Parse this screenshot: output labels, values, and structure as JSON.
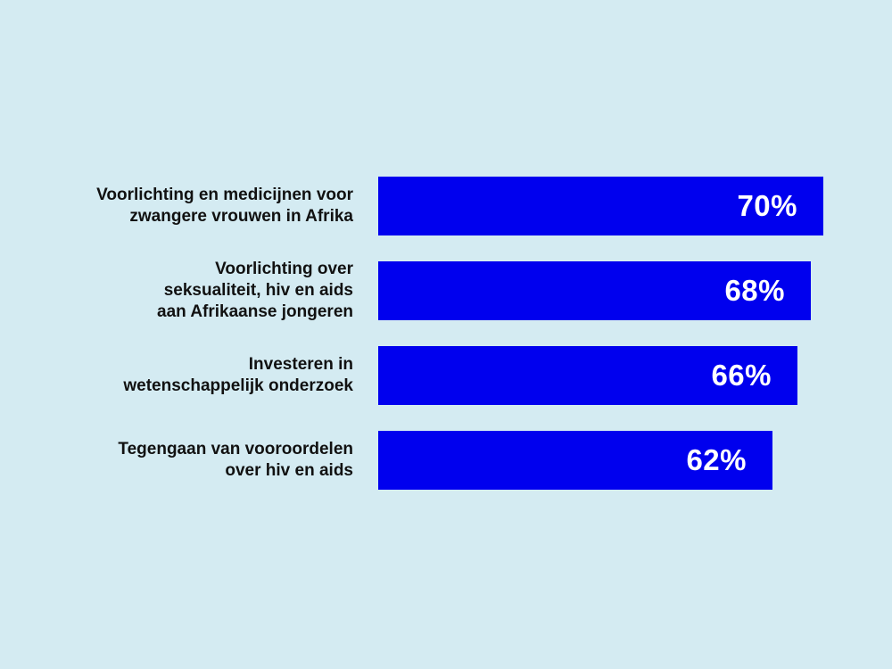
{
  "chart_data": {
    "type": "bar",
    "orientation": "horizontal",
    "categories": [
      "Voorlichting en medicijnen voor\nzwangere vrouwen in Afrika",
      "Voorlichting over\nseksualiteit, hiv en aids\naan  Afrikaanse jongeren",
      "Investeren in\nwetenschappelijk onderzoek",
      "Tegengaan van vooroordelen\nover hiv en aids"
    ],
    "values": [
      70,
      68,
      66,
      62
    ],
    "value_labels": [
      "70%",
      "68%",
      "66%",
      "62%"
    ],
    "unit": "%",
    "grid": false,
    "legend": "none",
    "bar_color": "#0000ee",
    "label_color": "#111111",
    "value_label_color": "#ffffff",
    "background_color": "#d4ebf2"
  }
}
